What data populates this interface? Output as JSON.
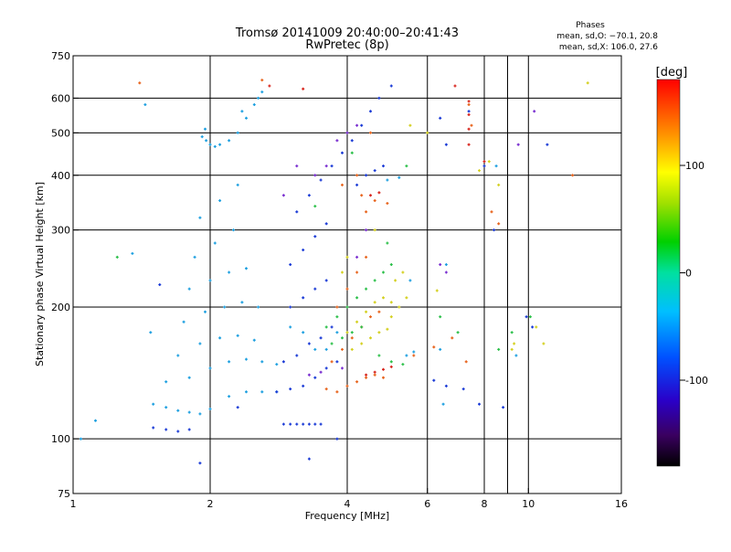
{
  "header": {
    "title_line1": "Tromsø 20141009 20:40:00–20:41:43",
    "title_line2": "RwPretec (8p)",
    "stats_title": "Phases",
    "stats_o": "mean, sd,O: −70.1, 20.8",
    "stats_x": "mean, sd,X: 106.0, 27.6"
  },
  "chart_data": {
    "type": "scatter",
    "title": "Tromsø 20141009 20:40:00–20:41:43",
    "subtitle": "RwPretec (8p)",
    "xlabel": "Frequency [MHz]",
    "ylabel": "Stationary phase Virtual Height [km]",
    "x_scale": "log",
    "y_scale": "log",
    "xlim": [
      1,
      16
    ],
    "ylim": [
      75,
      750
    ],
    "x_ticks": [
      1,
      2,
      4,
      6,
      8,
      10,
      16
    ],
    "x_tick_labels": [
      "1",
      "2",
      "4",
      "6",
      "8",
      "10",
      "16"
    ],
    "x_grid": [
      2,
      4,
      6,
      8,
      9,
      10
    ],
    "y_ticks": [
      75,
      100,
      200,
      300,
      400,
      500,
      600,
      750
    ],
    "y_tick_labels": [
      "75",
      "100",
      "200",
      "300",
      "400",
      "500",
      "600",
      "750"
    ],
    "y_grid": [
      100,
      200,
      300,
      400,
      500,
      600
    ],
    "grid": true,
    "colorbar": {
      "label": "[deg]",
      "range": [
        -180,
        180
      ],
      "ticks": [
        100,
        0,
        -100
      ],
      "tick_labels": [
        "100",
        "0",
        "-100"
      ]
    },
    "series": [
      {
        "color": "#1ea0e0",
        "points": [
          [
            1.92,
            490
          ],
          [
            1.96,
            480
          ],
          [
            2.0,
            470
          ],
          [
            2.05,
            465
          ],
          [
            2.1,
            470
          ],
          [
            2.2,
            480
          ],
          [
            2.3,
            500
          ],
          [
            2.4,
            540
          ],
          [
            2.5,
            580
          ],
          [
            2.6,
            620
          ],
          [
            1.95,
            510
          ],
          [
            2.35,
            560
          ],
          [
            2.55,
            600
          ],
          [
            1.5,
            120
          ],
          [
            1.6,
            118
          ],
          [
            1.7,
            116
          ],
          [
            1.8,
            115
          ],
          [
            1.9,
            114
          ],
          [
            2.0,
            117
          ],
          [
            2.2,
            125
          ],
          [
            2.4,
            128
          ],
          [
            2.6,
            128
          ],
          [
            2.8,
            128
          ],
          [
            1.6,
            135
          ],
          [
            1.8,
            138
          ],
          [
            2.0,
            145
          ],
          [
            2.2,
            150
          ],
          [
            2.4,
            152
          ],
          [
            2.6,
            150
          ],
          [
            2.8,
            148
          ],
          [
            1.7,
            155
          ],
          [
            1.9,
            165
          ],
          [
            2.1,
            170
          ],
          [
            2.3,
            172
          ],
          [
            2.5,
            168
          ],
          [
            1.75,
            185
          ],
          [
            1.95,
            195
          ],
          [
            2.15,
            200
          ],
          [
            2.35,
            205
          ],
          [
            2.55,
            200
          ],
          [
            1.8,
            220
          ],
          [
            2.0,
            230
          ],
          [
            2.2,
            240
          ],
          [
            2.4,
            245
          ],
          [
            1.85,
            260
          ],
          [
            2.05,
            280
          ],
          [
            2.25,
            300
          ],
          [
            1.9,
            320
          ],
          [
            2.1,
            350
          ],
          [
            2.3,
            380
          ],
          [
            3.0,
            180
          ],
          [
            3.2,
            175
          ],
          [
            3.4,
            160
          ],
          [
            3.6,
            160
          ],
          [
            3.8,
            175
          ],
          [
            5.4,
            155
          ],
          [
            5.6,
            158
          ],
          [
            6.4,
            160
          ],
          [
            1.44,
            580
          ],
          [
            1.35,
            265
          ],
          [
            1.12,
            110
          ],
          [
            1.04,
            100
          ],
          [
            1.48,
            175
          ],
          [
            4.9,
            390
          ],
          [
            5.2,
            395
          ],
          [
            5.5,
            230
          ],
          [
            6.6,
            250
          ],
          [
            6.5,
            120
          ],
          [
            9.4,
            155
          ],
          [
            8.5,
            420
          ]
        ]
      },
      {
        "color": "#1a3ad6",
        "points": [
          [
            1.5,
            106
          ],
          [
            1.6,
            105
          ],
          [
            1.7,
            104
          ],
          [
            1.8,
            105
          ],
          [
            2.9,
            108
          ],
          [
            3.0,
            108
          ],
          [
            3.1,
            108
          ],
          [
            3.2,
            108
          ],
          [
            3.3,
            108
          ],
          [
            3.4,
            108
          ],
          [
            3.5,
            108
          ],
          [
            2.8,
            128
          ],
          [
            3.0,
            130
          ],
          [
            3.2,
            132
          ],
          [
            3.4,
            138
          ],
          [
            3.6,
            145
          ],
          [
            3.8,
            150
          ],
          [
            2.9,
            150
          ],
          [
            3.1,
            155
          ],
          [
            3.3,
            165
          ],
          [
            3.5,
            170
          ],
          [
            3.7,
            180
          ],
          [
            3.0,
            200
          ],
          [
            3.2,
            210
          ],
          [
            3.4,
            220
          ],
          [
            3.6,
            230
          ],
          [
            3.0,
            250
          ],
          [
            3.2,
            270
          ],
          [
            3.4,
            290
          ],
          [
            3.6,
            310
          ],
          [
            3.1,
            330
          ],
          [
            3.3,
            360
          ],
          [
            3.5,
            390
          ],
          [
            3.7,
            420
          ],
          [
            3.9,
            450
          ],
          [
            4.1,
            480
          ],
          [
            4.3,
            520
          ],
          [
            4.5,
            560
          ],
          [
            4.7,
            600
          ],
          [
            5.0,
            640
          ],
          [
            4.2,
            380
          ],
          [
            4.4,
            400
          ],
          [
            4.6,
            410
          ],
          [
            4.8,
            420
          ],
          [
            6.2,
            136
          ],
          [
            6.6,
            132
          ],
          [
            7.2,
            130
          ],
          [
            7.8,
            120
          ],
          [
            8.8,
            118
          ],
          [
            2.3,
            118
          ],
          [
            1.9,
            88
          ],
          [
            3.3,
            90
          ],
          [
            1.55,
            225
          ],
          [
            7.4,
            560
          ],
          [
            6.4,
            540
          ],
          [
            6.6,
            470
          ],
          [
            8.0,
            420
          ],
          [
            8.4,
            300
          ],
          [
            9.9,
            190
          ],
          [
            10.2,
            180
          ],
          [
            11.0,
            470
          ],
          [
            3.8,
            100
          ]
        ]
      },
      {
        "color": "#e8651e",
        "points": [
          [
            3.6,
            130
          ],
          [
            3.8,
            128
          ],
          [
            4.0,
            132
          ],
          [
            4.2,
            135
          ],
          [
            4.4,
            138
          ],
          [
            4.6,
            140
          ],
          [
            4.8,
            138
          ],
          [
            3.7,
            150
          ],
          [
            3.9,
            160
          ],
          [
            4.1,
            170
          ],
          [
            4.3,
            180
          ],
          [
            4.5,
            190
          ],
          [
            4.7,
            195
          ],
          [
            3.8,
            200
          ],
          [
            4.0,
            220
          ],
          [
            4.2,
            240
          ],
          [
            4.4,
            260
          ],
          [
            4.3,
            360
          ],
          [
            4.6,
            350
          ],
          [
            4.9,
            345
          ],
          [
            4.4,
            330
          ],
          [
            7.5,
            520
          ],
          [
            7.4,
            580
          ],
          [
            5.6,
            155
          ],
          [
            6.2,
            162
          ],
          [
            6.8,
            170
          ],
          [
            7.3,
            150
          ],
          [
            8.3,
            330
          ],
          [
            8.6,
            310
          ],
          [
            12.5,
            400
          ],
          [
            1.4,
            650
          ],
          [
            2.6,
            660
          ],
          [
            4.5,
            500
          ],
          [
            3.9,
            380
          ],
          [
            4.2,
            400
          ]
        ]
      },
      {
        "color": "#d4d020",
        "points": [
          [
            4.0,
            175
          ],
          [
            4.2,
            185
          ],
          [
            4.4,
            195
          ],
          [
            4.6,
            205
          ],
          [
            4.8,
            210
          ],
          [
            4.1,
            160
          ],
          [
            4.3,
            165
          ],
          [
            4.5,
            170
          ],
          [
            4.7,
            175
          ],
          [
            4.9,
            178
          ],
          [
            5.0,
            190
          ],
          [
            5.2,
            200
          ],
          [
            5.4,
            210
          ],
          [
            5.1,
            230
          ],
          [
            5.3,
            240
          ],
          [
            3.9,
            240
          ],
          [
            4.0,
            260
          ],
          [
            4.6,
            300
          ],
          [
            8.6,
            380
          ],
          [
            8.2,
            430
          ],
          [
            10.4,
            180
          ],
          [
            10.8,
            165
          ],
          [
            9.3,
            165
          ],
          [
            9.2,
            160
          ],
          [
            13.5,
            650
          ],
          [
            5.5,
            520
          ],
          [
            6.0,
            500
          ],
          [
            7.8,
            410
          ],
          [
            5.0,
            205
          ],
          [
            6.3,
            218
          ]
        ]
      },
      {
        "color": "#2cc04a",
        "points": [
          [
            3.6,
            180
          ],
          [
            3.8,
            190
          ],
          [
            4.0,
            200
          ],
          [
            4.2,
            210
          ],
          [
            4.4,
            220
          ],
          [
            4.6,
            230
          ],
          [
            4.8,
            240
          ],
          [
            5.0,
            250
          ],
          [
            3.7,
            165
          ],
          [
            3.9,
            170
          ],
          [
            4.1,
            175
          ],
          [
            4.3,
            180
          ],
          [
            4.7,
            155
          ],
          [
            5.0,
            150
          ],
          [
            5.3,
            148
          ],
          [
            1.25,
            260
          ],
          [
            6.4,
            190
          ],
          [
            7.0,
            175
          ],
          [
            8.6,
            160
          ],
          [
            9.2,
            175
          ],
          [
            10.1,
            190
          ],
          [
            5.4,
            420
          ],
          [
            4.1,
            450
          ],
          [
            3.4,
            340
          ],
          [
            4.9,
            280
          ]
        ]
      },
      {
        "color": "#7a2fd0",
        "points": [
          [
            3.8,
            480
          ],
          [
            4.0,
            500
          ],
          [
            4.2,
            520
          ],
          [
            3.4,
            400
          ],
          [
            3.6,
            420
          ],
          [
            3.3,
            140
          ],
          [
            3.5,
            142
          ],
          [
            3.9,
            145
          ],
          [
            4.2,
            260
          ],
          [
            4.4,
            300
          ],
          [
            6.4,
            250
          ],
          [
            6.6,
            240
          ],
          [
            9.5,
            470
          ],
          [
            10.3,
            560
          ],
          [
            2.9,
            360
          ],
          [
            3.1,
            420
          ]
        ]
      },
      {
        "color": "#d8261e",
        "points": [
          [
            4.4,
            140
          ],
          [
            4.6,
            142
          ],
          [
            4.8,
            144
          ],
          [
            5.0,
            146
          ],
          [
            4.5,
            360
          ],
          [
            4.7,
            365
          ],
          [
            7.4,
            590
          ],
          [
            7.4,
            550
          ],
          [
            7.4,
            510
          ],
          [
            7.4,
            470
          ],
          [
            2.7,
            640
          ],
          [
            3.2,
            630
          ],
          [
            8.0,
            430
          ],
          [
            6.9,
            640
          ]
        ]
      }
    ]
  }
}
